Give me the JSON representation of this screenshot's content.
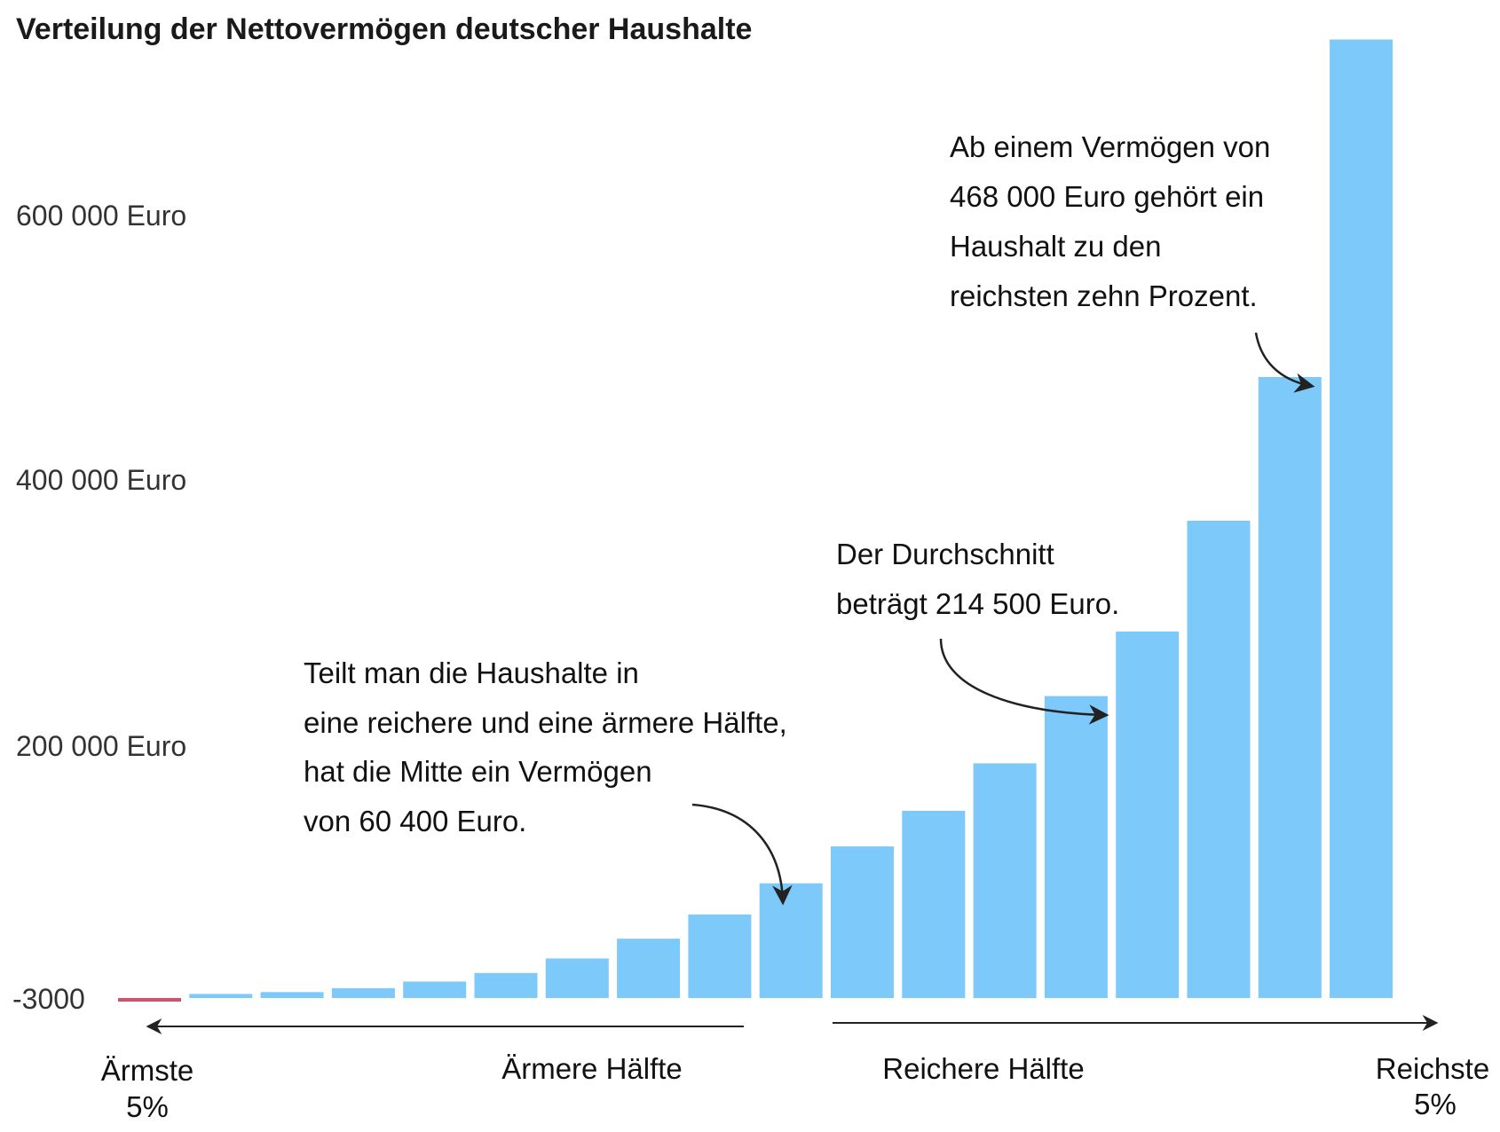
{
  "chart_data": {
    "type": "bar",
    "title": "Verteilung der Nettovermögen deutscher Haushalte",
    "y_ticks": [
      {
        "value": 600000,
        "label": "600 000 Euro"
      },
      {
        "value": 400000,
        "label": "400 000 Euro"
      },
      {
        "value": 200000,
        "label": "200 000 Euro"
      },
      {
        "value": -3000,
        "label": "-3000"
      }
    ],
    "ylim": [
      -3000,
      725000
    ],
    "values": [
      -3000,
      100,
      1500,
      4500,
      9500,
      16000,
      27000,
      42000,
      60400,
      84000,
      112000,
      139000,
      175000,
      226000,
      275000,
      359000,
      468000,
      724000
    ],
    "colors": {
      "bar": "#7cc9fa",
      "negative": "#d0506e",
      "text": "#111111"
    },
    "annotations": [
      {
        "name": "top10",
        "lines": [
          "Ab einem Vermögen von",
          "468 000 Euro gehört ein",
          "Haushalt zu den",
          "reichsten zehn Prozent."
        ]
      },
      {
        "name": "mean",
        "lines": [
          "Der Durchschnitt",
          "beträgt 214  500 Euro."
        ]
      },
      {
        "name": "median",
        "lines": [
          "Teilt man die Haushalte in",
          "eine reichere und eine ärmere Hälfte,",
          "hat die Mitte ein Vermögen",
          "von 60 400 Euro."
        ]
      }
    ],
    "x_labels": {
      "poorest": [
        "Ärmste",
        "5%"
      ],
      "poorer_half": "Ärmere Hälfte",
      "richer_half": "Reichere Hälfte",
      "richest": [
        "Reichste",
        "5%"
      ]
    }
  }
}
